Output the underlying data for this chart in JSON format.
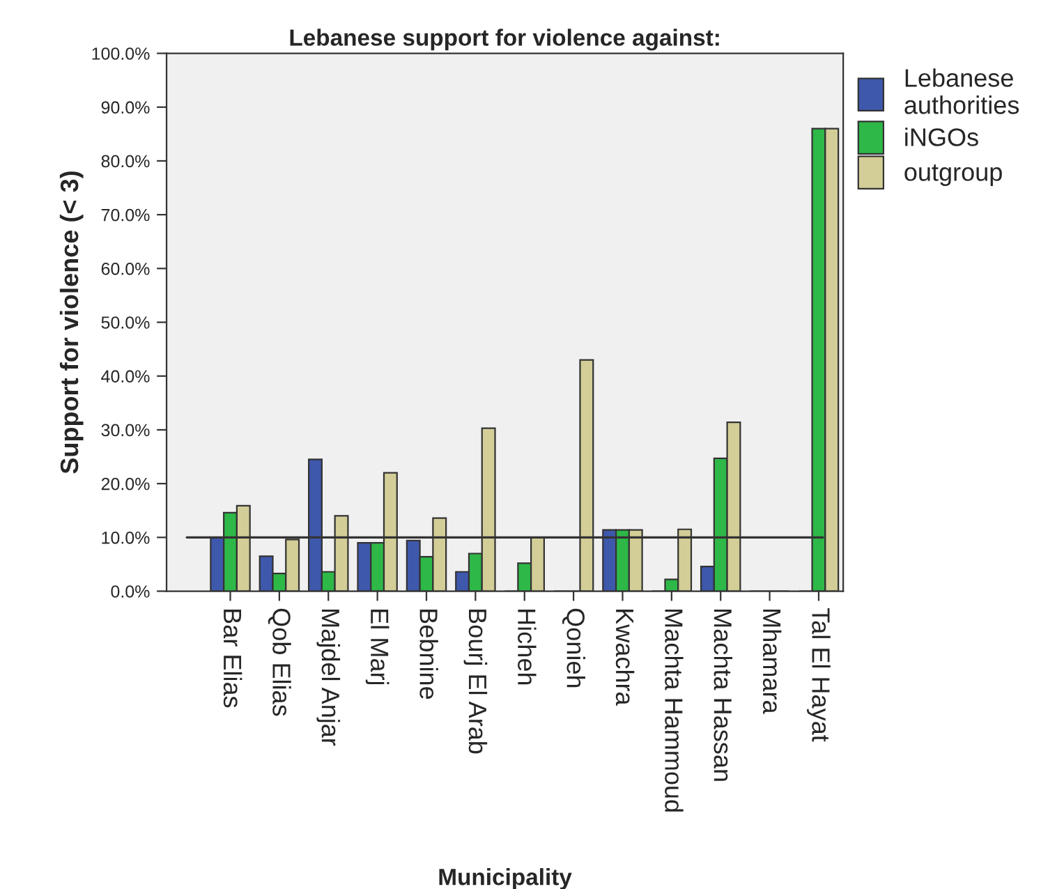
{
  "chart_data": {
    "type": "bar",
    "title": "Lebanese support for violence against:",
    "xlabel": "Municipality",
    "ylabel": "Support for violence (< 3)",
    "categories": [
      "Bar Elias",
      "Qob Elias",
      "Majdel Anjar",
      "El Marj",
      "Bebnine",
      "Bourj El Arab",
      "Hicheh",
      "Qonieh",
      "Kwachra",
      "Machta Hammoud",
      "Machta Hassan",
      "Mhamara",
      "Tal El Hayat"
    ],
    "series": [
      {
        "name": "Lebanese\nauthorities",
        "color": "#3e58ac",
        "values": [
          10.0,
          6.5,
          24.5,
          9.0,
          9.4,
          3.6,
          0,
          0,
          11.4,
          0,
          4.6,
          0,
          0
        ]
      },
      {
        "name": "iNGOs",
        "color": "#2eb848",
        "values": [
          14.6,
          3.3,
          3.6,
          9.0,
          6.4,
          7.0,
          5.2,
          0,
          11.4,
          2.2,
          24.7,
          0,
          86
        ]
      },
      {
        "name": "outgroup",
        "color": "#d3ce97",
        "values": [
          15.9,
          9.6,
          14.0,
          22.0,
          13.6,
          30.3,
          10.0,
          43,
          11.4,
          11.5,
          31.4,
          0,
          86
        ]
      }
    ],
    "ylim": [
      0,
      100
    ],
    "yticks": [
      {
        "value": 0,
        "label": "0.0%"
      },
      {
        "value": 10,
        "label": "10.0%"
      },
      {
        "value": 20,
        "label": "20.0%"
      },
      {
        "value": 30,
        "label": "30.0%"
      },
      {
        "value": 40,
        "label": "40.0%"
      },
      {
        "value": 50,
        "label": "50.0%"
      },
      {
        "value": 60,
        "label": "60.0%"
      },
      {
        "value": 70,
        "label": "70.0%"
      },
      {
        "value": 80,
        "label": "80.0%"
      },
      {
        "value": 90,
        "label": "90.0%"
      },
      {
        "value": 100,
        "label": "100.0%"
      }
    ],
    "ref_lines": [
      {
        "axis": "y",
        "value": 10,
        "label": null,
        "color": "#333333"
      }
    ],
    "grid": false,
    "legend": "top right"
  }
}
